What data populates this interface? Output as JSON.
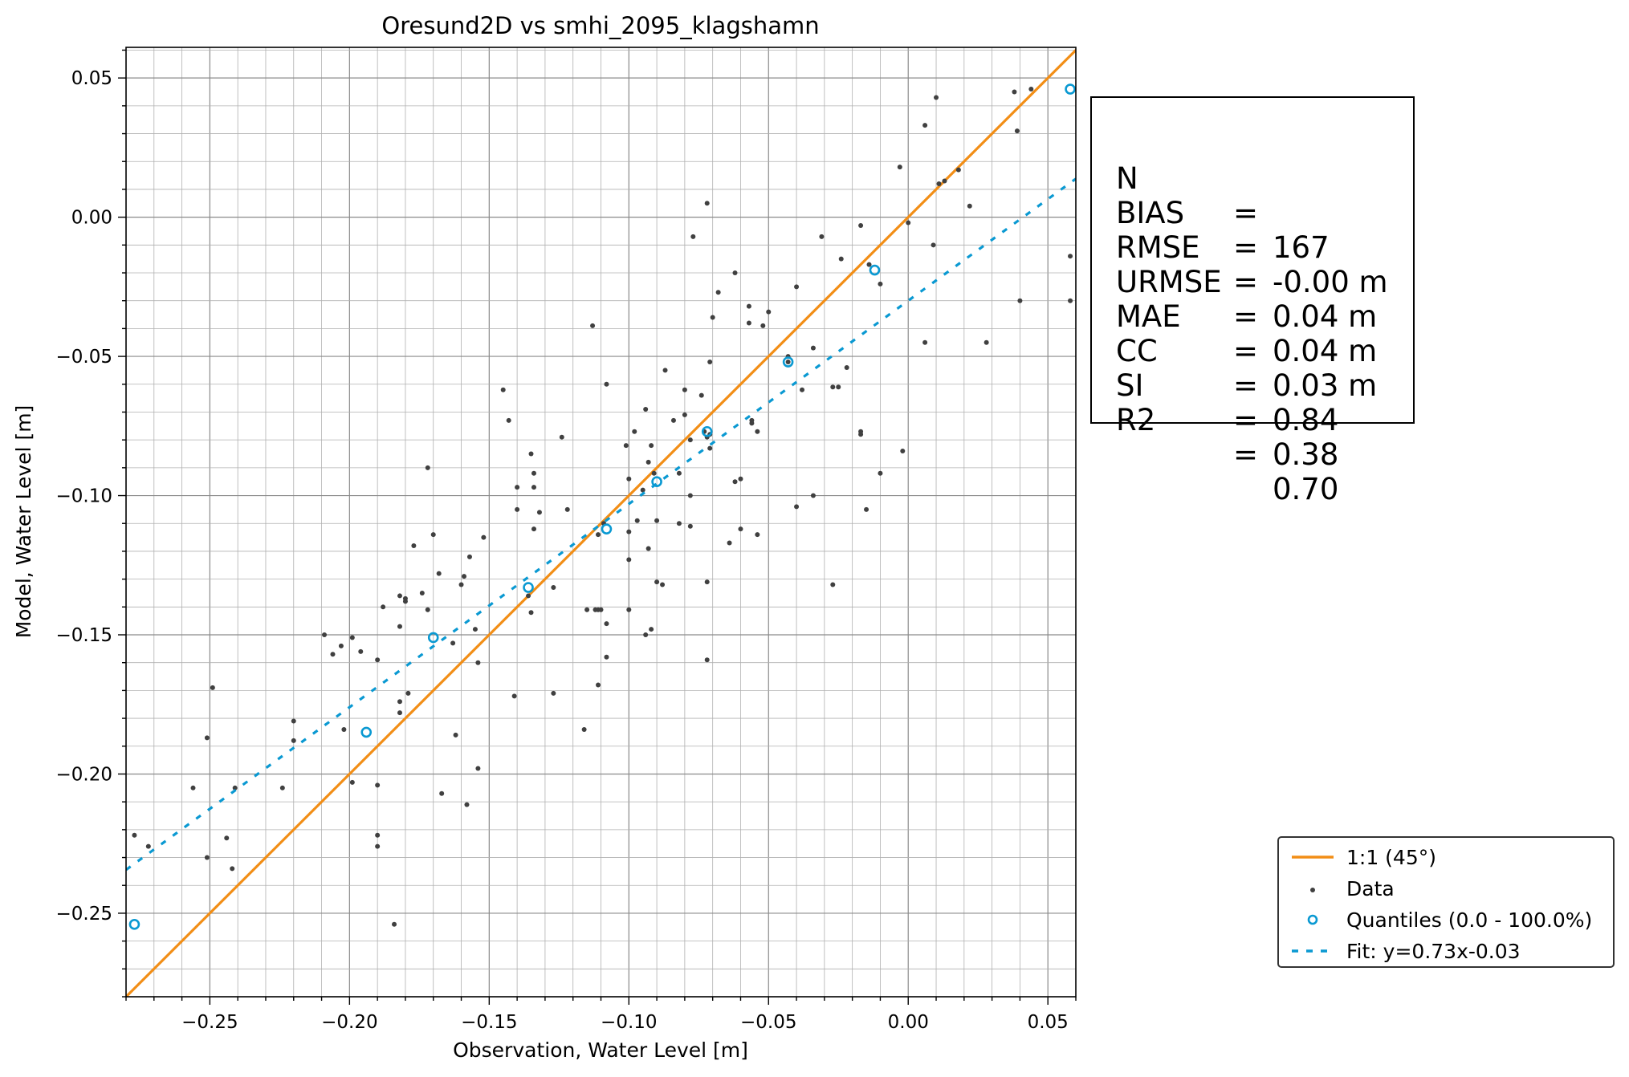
{
  "chart_data": {
    "type": "scatter",
    "title": "Oresund2D vs smhi_2095_klagshamn",
    "xlabel": "Observation, Water Level [m]",
    "ylabel": "Model, Water Level [m]",
    "xlim": [
      -0.28,
      0.06
    ],
    "ylim": [
      -0.28,
      0.061
    ],
    "xticks": [
      -0.25,
      -0.2,
      -0.15,
      -0.1,
      -0.05,
      0.0,
      0.05
    ],
    "yticks": [
      0.05,
      0.0,
      -0.05,
      -0.1,
      -0.15,
      -0.2,
      -0.25
    ],
    "xtick_labels": [
      "−0.25",
      "−0.20",
      "−0.15",
      "−0.10",
      "−0.05",
      "0.00",
      "0.05"
    ],
    "ytick_labels": [
      "0.05",
      "0.00",
      "−0.05",
      "−0.10",
      "−0.15",
      "−0.20",
      "−0.25"
    ],
    "grid": true,
    "legend_position": "lower-right (outside plot)",
    "colors": {
      "one_to_one": "#f28e16",
      "data": "#404040",
      "quantiles": "#0a99d2",
      "fit": "#0a99d2"
    },
    "series": [
      {
        "name": "1:1 (45°)",
        "kind": "line",
        "points": [
          [
            -0.28,
            -0.28
          ],
          [
            0.061,
            0.061
          ]
        ]
      },
      {
        "name": "Data",
        "kind": "scatter",
        "points": [
          [
            -0.277,
            -0.222
          ],
          [
            -0.272,
            -0.226
          ],
          [
            -0.256,
            -0.205
          ],
          [
            -0.251,
            -0.187
          ],
          [
            -0.251,
            -0.23
          ],
          [
            -0.249,
            -0.169
          ],
          [
            -0.244,
            -0.223
          ],
          [
            -0.242,
            -0.234
          ],
          [
            -0.241,
            -0.205
          ],
          [
            -0.224,
            -0.205
          ],
          [
            -0.22,
            -0.181
          ],
          [
            -0.22,
            -0.188
          ],
          [
            -0.209,
            -0.15
          ],
          [
            -0.206,
            -0.157
          ],
          [
            -0.203,
            -0.154
          ],
          [
            -0.202,
            -0.184
          ],
          [
            -0.199,
            -0.203
          ],
          [
            -0.199,
            -0.151
          ],
          [
            -0.196,
            -0.156
          ],
          [
            -0.19,
            -0.159
          ],
          [
            -0.19,
            -0.204
          ],
          [
            -0.19,
            -0.222
          ],
          [
            -0.19,
            -0.226
          ],
          [
            -0.188,
            -0.14
          ],
          [
            -0.184,
            -0.254
          ],
          [
            -0.182,
            -0.136
          ],
          [
            -0.182,
            -0.147
          ],
          [
            -0.182,
            -0.174
          ],
          [
            -0.182,
            -0.178
          ],
          [
            -0.18,
            -0.137
          ],
          [
            -0.18,
            -0.138
          ],
          [
            -0.179,
            -0.171
          ],
          [
            -0.177,
            -0.118
          ],
          [
            -0.174,
            -0.135
          ],
          [
            -0.172,
            -0.09
          ],
          [
            -0.172,
            -0.141
          ],
          [
            -0.17,
            -0.114
          ],
          [
            -0.168,
            -0.128
          ],
          [
            -0.167,
            -0.207
          ],
          [
            -0.163,
            -0.153
          ],
          [
            -0.162,
            -0.186
          ],
          [
            -0.16,
            -0.132
          ],
          [
            -0.159,
            -0.129
          ],
          [
            -0.158,
            -0.211
          ],
          [
            -0.157,
            -0.122
          ],
          [
            -0.155,
            -0.148
          ],
          [
            -0.154,
            -0.16
          ],
          [
            -0.154,
            -0.198
          ],
          [
            -0.152,
            -0.115
          ],
          [
            -0.145,
            -0.062
          ],
          [
            -0.143,
            -0.073
          ],
          [
            -0.141,
            -0.172
          ],
          [
            -0.14,
            -0.097
          ],
          [
            -0.14,
            -0.105
          ],
          [
            -0.136,
            -0.136
          ],
          [
            -0.135,
            -0.085
          ],
          [
            -0.135,
            -0.142
          ],
          [
            -0.134,
            -0.092
          ],
          [
            -0.134,
            -0.097
          ],
          [
            -0.134,
            -0.112
          ],
          [
            -0.132,
            -0.106
          ],
          [
            -0.127,
            -0.133
          ],
          [
            -0.127,
            -0.171
          ],
          [
            -0.124,
            -0.079
          ],
          [
            -0.122,
            -0.105
          ],
          [
            -0.116,
            -0.184
          ],
          [
            -0.115,
            -0.141
          ],
          [
            -0.113,
            -0.039
          ],
          [
            -0.112,
            -0.141
          ],
          [
            -0.111,
            -0.141
          ],
          [
            -0.111,
            -0.114
          ],
          [
            -0.111,
            -0.168
          ],
          [
            -0.11,
            -0.141
          ],
          [
            -0.108,
            -0.06
          ],
          [
            -0.108,
            -0.146
          ],
          [
            -0.108,
            -0.158
          ],
          [
            -0.101,
            -0.082
          ],
          [
            -0.1,
            -0.094
          ],
          [
            -0.1,
            -0.113
          ],
          [
            -0.1,
            -0.123
          ],
          [
            -0.1,
            -0.141
          ],
          [
            -0.098,
            -0.077
          ],
          [
            -0.097,
            -0.109
          ],
          [
            -0.095,
            -0.098
          ],
          [
            -0.094,
            -0.069
          ],
          [
            -0.094,
            -0.15
          ],
          [
            -0.093,
            -0.088
          ],
          [
            -0.093,
            -0.119
          ],
          [
            -0.092,
            -0.082
          ],
          [
            -0.092,
            -0.148
          ],
          [
            -0.09,
            -0.109
          ],
          [
            -0.09,
            -0.131
          ],
          [
            -0.088,
            -0.132
          ],
          [
            -0.087,
            -0.055
          ],
          [
            -0.084,
            -0.073
          ],
          [
            -0.082,
            -0.092
          ],
          [
            -0.082,
            -0.11
          ],
          [
            -0.08,
            -0.062
          ],
          [
            -0.08,
            -0.071
          ],
          [
            -0.078,
            -0.08
          ],
          [
            -0.078,
            -0.1
          ],
          [
            -0.078,
            -0.111
          ],
          [
            -0.077,
            -0.007
          ],
          [
            -0.074,
            -0.064
          ],
          [
            -0.073,
            -0.077
          ],
          [
            -0.072,
            0.005
          ],
          [
            -0.072,
            -0.079
          ],
          [
            -0.072,
            -0.131
          ],
          [
            -0.072,
            -0.159
          ],
          [
            -0.071,
            -0.052
          ],
          [
            -0.071,
            -0.083
          ],
          [
            -0.07,
            -0.036
          ],
          [
            -0.068,
            -0.027
          ],
          [
            -0.064,
            -0.117
          ],
          [
            -0.062,
            -0.02
          ],
          [
            -0.062,
            -0.095
          ],
          [
            -0.06,
            -0.094
          ],
          [
            -0.06,
            -0.112
          ],
          [
            -0.057,
            -0.032
          ],
          [
            -0.057,
            -0.038
          ],
          [
            -0.056,
            -0.073
          ],
          [
            -0.056,
            -0.074
          ],
          [
            -0.054,
            -0.077
          ],
          [
            -0.054,
            -0.114
          ],
          [
            -0.052,
            -0.039
          ],
          [
            -0.05,
            -0.034
          ],
          [
            -0.043,
            -0.05
          ],
          [
            -0.043,
            -0.052
          ],
          [
            -0.04,
            -0.025
          ],
          [
            -0.04,
            -0.104
          ],
          [
            -0.038,
            -0.062
          ],
          [
            -0.034,
            -0.047
          ],
          [
            -0.034,
            -0.1
          ],
          [
            -0.031,
            -0.007
          ],
          [
            -0.027,
            -0.061
          ],
          [
            -0.027,
            -0.132
          ],
          [
            -0.025,
            -0.061
          ],
          [
            -0.024,
            -0.015
          ],
          [
            -0.022,
            -0.054
          ],
          [
            -0.017,
            -0.003
          ],
          [
            -0.017,
            -0.077
          ],
          [
            -0.017,
            -0.078
          ],
          [
            -0.015,
            -0.105
          ],
          [
            -0.014,
            -0.017
          ],
          [
            -0.01,
            -0.024
          ],
          [
            -0.01,
            -0.092
          ],
          [
            -0.003,
            0.018
          ],
          [
            -0.002,
            -0.084
          ],
          [
            0.0,
            -0.002
          ],
          [
            0.006,
            0.033
          ],
          [
            0.006,
            -0.045
          ],
          [
            0.009,
            -0.01
          ],
          [
            0.01,
            0.043
          ],
          [
            0.013,
            0.013
          ],
          [
            0.018,
            0.017
          ],
          [
            0.022,
            0.004
          ],
          [
            0.028,
            -0.045
          ],
          [
            0.038,
            0.045
          ],
          [
            0.039,
            0.031
          ],
          [
            0.04,
            -0.03
          ],
          [
            0.044,
            0.046
          ],
          [
            0.058,
            -0.014
          ],
          [
            0.058,
            -0.03
          ],
          [
            0.011,
            0.012
          ],
          [
            -0.109,
            -0.11
          ],
          [
            -0.091,
            -0.092
          ],
          [
            -0.071,
            -0.078
          ]
        ]
      },
      {
        "name": "Quantiles (0.0 - 100.0%)",
        "kind": "scatter-open",
        "points": [
          [
            -0.277,
            -0.254
          ],
          [
            -0.194,
            -0.185
          ],
          [
            -0.17,
            -0.151
          ],
          [
            -0.136,
            -0.133
          ],
          [
            -0.108,
            -0.112
          ],
          [
            -0.09,
            -0.095
          ],
          [
            -0.072,
            -0.077
          ],
          [
            -0.043,
            -0.052
          ],
          [
            -0.012,
            -0.019
          ],
          [
            0.058,
            0.046
          ]
        ]
      },
      {
        "name": "Fit: y=0.73x-0.03",
        "kind": "dashed-line",
        "slope": 0.73,
        "intercept": -0.03
      }
    ]
  },
  "stats": [
    {
      "key": "N",
      "eq": "=",
      "value": "167"
    },
    {
      "key": "BIAS",
      "eq": "=",
      "value": "-0.00 m"
    },
    {
      "key": "RMSE",
      "eq": "=",
      "value": "0.04 m"
    },
    {
      "key": "URMSE",
      "eq": "=",
      "value": "0.04 m"
    },
    {
      "key": "MAE",
      "eq": "=",
      "value": "0.03 m"
    },
    {
      "key": "CC",
      "eq": "=",
      "value": "0.84"
    },
    {
      "key": "SI",
      "eq": "=",
      "value": "0.38"
    },
    {
      "key": "R2",
      "eq": "=",
      "value": "0.70"
    }
  ],
  "legend": {
    "items": [
      {
        "label": "1:1 (45°)"
      },
      {
        "label": "Data"
      },
      {
        "label": "Quantiles (0.0 - 100.0%)"
      },
      {
        "label": "Fit: y=0.73x-0.03"
      }
    ]
  }
}
